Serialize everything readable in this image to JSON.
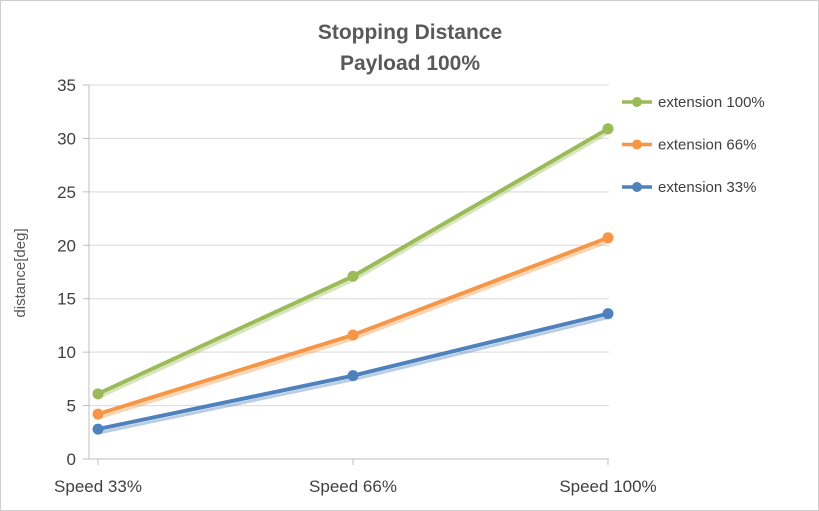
{
  "chart_data": {
    "type": "line",
    "title": "Stopping Distance Payload 100%",
    "title_line1": "Stopping Distance",
    "title_line2": "Payload 100%",
    "ylabel": "distance[deg]",
    "categories": [
      "Speed 33%",
      "Speed 66%",
      "Speed 100%"
    ],
    "series": [
      {
        "name": "extension 100%",
        "color": "#9BBB59",
        "values": [
          6.1,
          17.1,
          30.9
        ]
      },
      {
        "name": "extension 66%",
        "color": "#F79646",
        "values": [
          4.2,
          11.6,
          20.7
        ]
      },
      {
        "name": "extension 33%",
        "color": "#4F81BD",
        "values": [
          2.8,
          7.8,
          13.6
        ]
      }
    ],
    "ylim": [
      0,
      35
    ],
    "yticks": [
      0,
      5,
      10,
      15,
      20,
      25,
      30,
      35
    ],
    "grid": true,
    "legend_position": "right",
    "colors": {
      "grid": "#D9D9D9",
      "axis": "#BFBFBF",
      "title_text": "#595959",
      "tick_text": "#404040",
      "background": "#FFFFFF"
    }
  }
}
